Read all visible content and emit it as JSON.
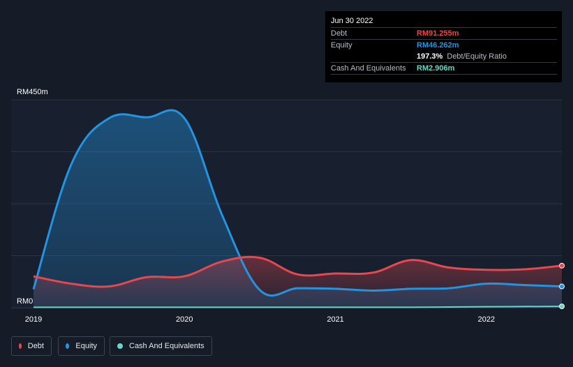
{
  "tooltip": {
    "date": "Jun 30 2022",
    "debt_label": "Debt",
    "debt_value": "RM91.255m",
    "equity_label": "Equity",
    "equity_value": "RM46.262m",
    "ratio_value": "197.3%",
    "ratio_label": "Debt/Equity Ratio",
    "cash_label": "Cash And Equivalents",
    "cash_value": "RM2.906m"
  },
  "legend": {
    "debt": "Debt",
    "equity": "Equity",
    "cash": "Cash And Equivalents"
  },
  "colors": {
    "debt": "#e5484d",
    "equity": "#2394df",
    "cash": "#6ad5c7",
    "background": "#151b27"
  },
  "chart_data": {
    "type": "area",
    "title": "",
    "ylabel": "",
    "xlabel": "",
    "ylim": [
      0,
      450
    ],
    "y_tick_labels": [
      "RM0",
      "RM450m"
    ],
    "x_tick_labels": [
      "2019",
      "2020",
      "2021",
      "2022"
    ],
    "x_ticks": [
      2019.0,
      2020.0,
      2021.0,
      2022.0
    ],
    "x_range": [
      2019.0,
      2022.5
    ],
    "series": [
      {
        "name": "Equity",
        "key": "equity",
        "x": [
          2019.0,
          2019.25,
          2019.5,
          2019.75,
          2020.0,
          2020.25,
          2020.5,
          2020.75,
          2021.0,
          2021.25,
          2021.5,
          2021.75,
          2022.0,
          2022.25,
          2022.5
        ],
        "values": [
          40,
          310,
          410,
          412,
          410,
          200,
          38,
          42,
          41,
          37,
          41,
          42,
          52,
          49,
          46
        ]
      },
      {
        "name": "Debt",
        "key": "debt",
        "x": [
          2019.0,
          2019.25,
          2019.5,
          2019.75,
          2020.0,
          2020.25,
          2020.5,
          2020.75,
          2021.0,
          2021.25,
          2021.5,
          2021.75,
          2022.0,
          2022.25,
          2022.5
        ],
        "values": [
          68,
          52,
          46,
          66,
          68,
          100,
          108,
          72,
          74,
          76,
          103,
          87,
          82,
          83,
          91
        ]
      },
      {
        "name": "Cash And Equivalents",
        "key": "cash",
        "x": [
          2019.0,
          2019.5,
          2020.0,
          2020.5,
          2021.0,
          2021.5,
          2022.0,
          2022.5
        ],
        "values": [
          1,
          1,
          1,
          1,
          1,
          1,
          2,
          2.9
        ]
      }
    ]
  }
}
